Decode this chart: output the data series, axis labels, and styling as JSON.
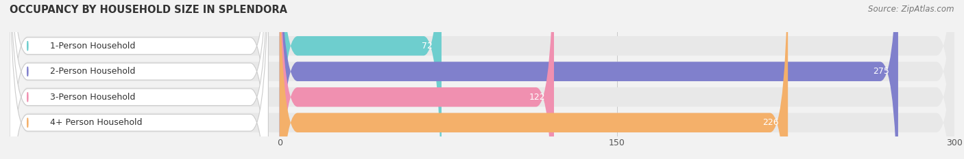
{
  "title": "OCCUPANCY BY HOUSEHOLD SIZE IN SPLENDORA",
  "source": "Source: ZipAtlas.com",
  "categories": [
    "1-Person Household",
    "2-Person Household",
    "3-Person Household",
    "4+ Person Household"
  ],
  "values": [
    72,
    275,
    122,
    226
  ],
  "bar_colors": [
    "#6ecece",
    "#8080cc",
    "#f090b0",
    "#f4b06a"
  ],
  "xlim": [
    -120,
    300
  ],
  "xticks": [
    0,
    150,
    300
  ],
  "background_color": "#f2f2f2",
  "bar_bg_color": "#e0e0e0",
  "title_fontsize": 10.5,
  "source_fontsize": 8.5,
  "tick_fontsize": 9,
  "label_fontsize": 9,
  "value_fontsize": 9
}
